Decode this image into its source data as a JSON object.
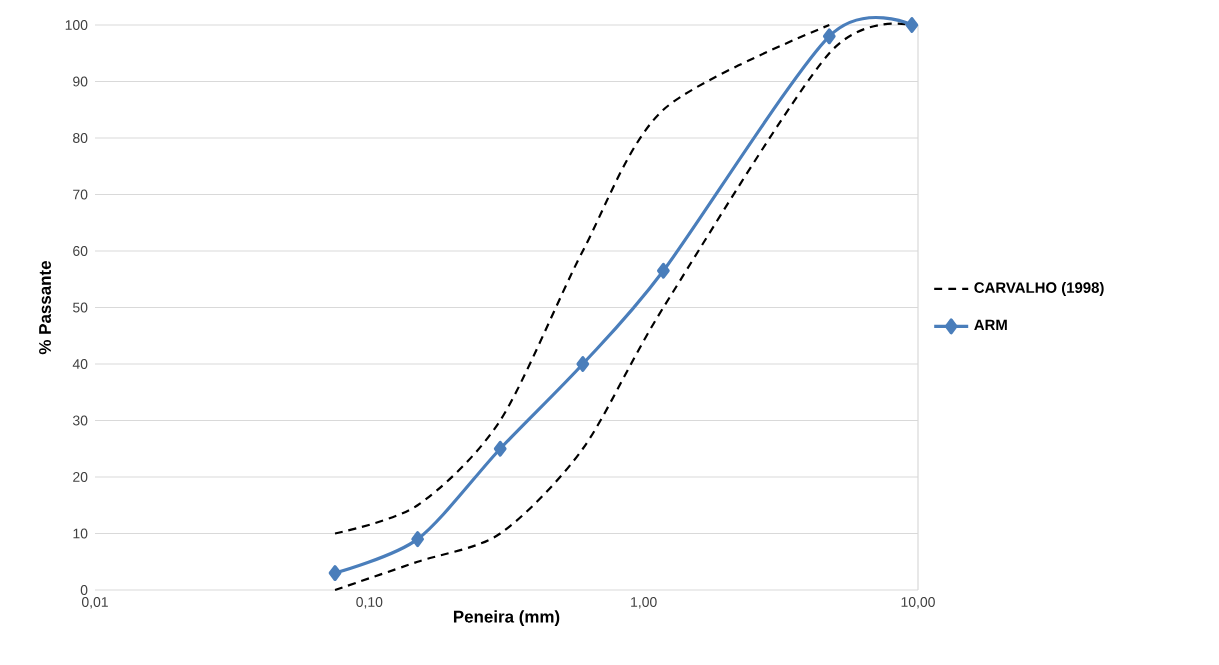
{
  "chart_data": {
    "type": "line",
    "xlabel": "Peneira (mm)",
    "ylabel": "% Passante",
    "log": "x",
    "xlim": [
      0.01,
      10
    ],
    "ylim": [
      0,
      100
    ],
    "xticks": [
      {
        "value": 0.01,
        "label": "0,01"
      },
      {
        "value": 0.1,
        "label": "0,10"
      },
      {
        "value": 1,
        "label": "1,00"
      },
      {
        "value": 10,
        "label": "10,00"
      }
    ],
    "yticks": [
      0,
      10,
      20,
      30,
      40,
      50,
      60,
      70,
      80,
      90,
      100
    ],
    "grid": "y",
    "legend": "right",
    "series": [
      {
        "name": "CARVALHO (1998)",
        "color": "#000000",
        "line_style": "dashed",
        "marker": "none",
        "x": [
          0.075,
          0.15,
          0.3,
          0.6,
          1.18,
          4.75
        ],
        "values": [
          10,
          15,
          30,
          60,
          85,
          100
        ]
      },
      {
        "color": "#000000",
        "line_style": "dashed",
        "marker": "none",
        "x": [
          0.075,
          0.15,
          0.3,
          0.6,
          1.18,
          4.75,
          9.5
        ],
        "values": [
          0,
          5,
          10,
          25,
          50,
          95,
          100
        ]
      },
      {
        "name": "ARM",
        "color": "#4a7ebb",
        "line_style": "solid",
        "marker": "diamond",
        "x": [
          0.075,
          0.15,
          0.3,
          0.6,
          1.18,
          4.75,
          9.5
        ],
        "values": [
          3,
          9,
          25,
          40,
          56.5,
          98,
          100
        ]
      }
    ]
  }
}
